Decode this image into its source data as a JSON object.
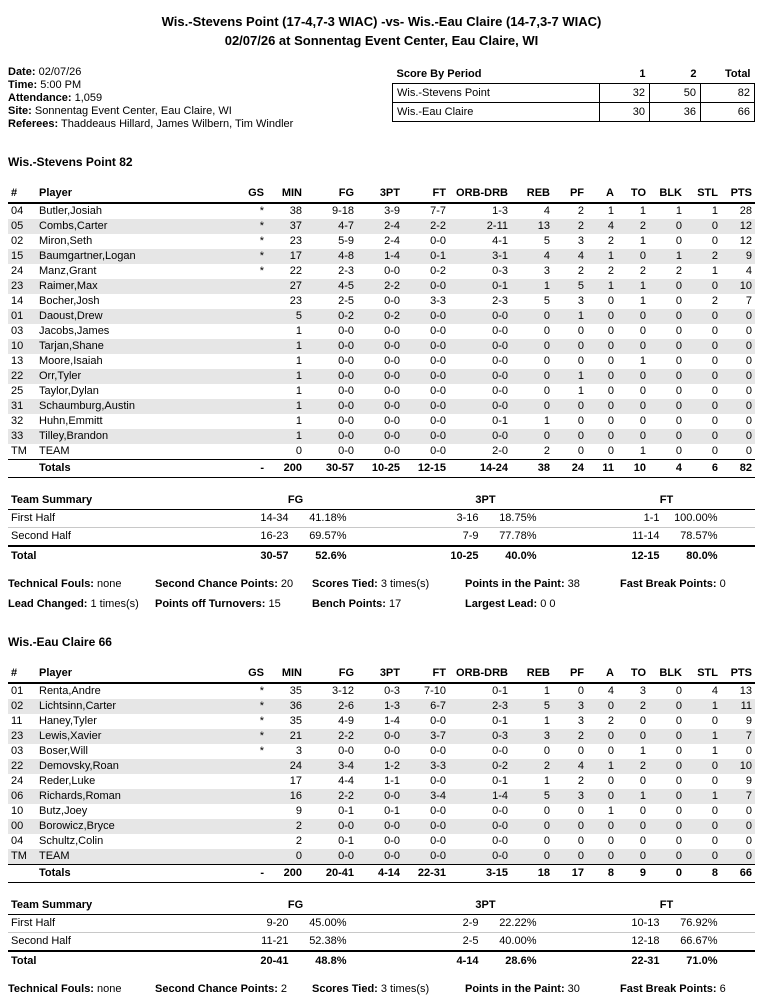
{
  "header": {
    "title": "Wis.-Stevens Point (17-4,7-3 WIAC) -vs- Wis.-Eau Claire (14-7,3-7 WIAC)",
    "subtitle": "02/07/26 at Sonnentag Event Center, Eau Claire, WI"
  },
  "game_info": {
    "date_label": "Date:",
    "date": "02/07/26",
    "time_label": "Time:",
    "time": "5:00 PM",
    "attendance_label": "Attendance:",
    "attendance": "1,059",
    "site_label": "Site:",
    "site": "Sonnentag Event Center, Eau Claire, WI",
    "referees_label": "Referees:",
    "referees": "Thaddeaus Hillard, James Wilbern, Tim Windler"
  },
  "score_by_period": {
    "header": [
      "Score By Period",
      "1",
      "2",
      "Total"
    ],
    "rows": [
      [
        "Wis.-Stevens Point",
        "32",
        "50",
        "82"
      ],
      [
        "Wis.-Eau Claire",
        "30",
        "36",
        "66"
      ]
    ]
  },
  "box_columns": [
    "#",
    "Player",
    "GS",
    "MIN",
    "FG",
    "3PT",
    "FT",
    "ORB-DRB",
    "REB",
    "PF",
    "A",
    "TO",
    "BLK",
    "STL",
    "PTS"
  ],
  "summary_columns": [
    "Team Summary",
    "FG",
    "3PT",
    "FT"
  ],
  "colors": {
    "row_shade": "#e6e6e6"
  },
  "teams": [
    {
      "heading": "Wis.-Stevens Point 82",
      "players": [
        [
          "04",
          "Butler,Josiah",
          "*",
          "38",
          "9-18",
          "3-9",
          "7-7",
          "1-3",
          "4",
          "2",
          "1",
          "1",
          "1",
          "1",
          "28"
        ],
        [
          "05",
          "Combs,Carter",
          "*",
          "37",
          "4-7",
          "2-4",
          "2-2",
          "2-11",
          "13",
          "2",
          "4",
          "2",
          "0",
          "0",
          "12"
        ],
        [
          "02",
          "Miron,Seth",
          "*",
          "23",
          "5-9",
          "2-4",
          "0-0",
          "4-1",
          "5",
          "3",
          "2",
          "1",
          "0",
          "0",
          "12"
        ],
        [
          "15",
          "Baumgartner,Logan",
          "*",
          "17",
          "4-8",
          "1-4",
          "0-1",
          "3-1",
          "4",
          "4",
          "1",
          "0",
          "1",
          "2",
          "9"
        ],
        [
          "24",
          "Manz,Grant",
          "*",
          "22",
          "2-3",
          "0-0",
          "0-2",
          "0-3",
          "3",
          "2",
          "2",
          "2",
          "2",
          "1",
          "4"
        ],
        [
          "23",
          "Raimer,Max",
          "",
          "27",
          "4-5",
          "2-2",
          "0-0",
          "0-1",
          "1",
          "5",
          "1",
          "1",
          "0",
          "0",
          "10"
        ],
        [
          "14",
          "Bocher,Josh",
          "",
          "23",
          "2-5",
          "0-0",
          "3-3",
          "2-3",
          "5",
          "3",
          "0",
          "1",
          "0",
          "2",
          "7"
        ],
        [
          "01",
          "Daoust,Drew",
          "",
          "5",
          "0-2",
          "0-2",
          "0-0",
          "0-0",
          "0",
          "1",
          "0",
          "0",
          "0",
          "0",
          "0"
        ],
        [
          "03",
          "Jacobs,James",
          "",
          "1",
          "0-0",
          "0-0",
          "0-0",
          "0-0",
          "0",
          "0",
          "0",
          "0",
          "0",
          "0",
          "0"
        ],
        [
          "10",
          "Tarjan,Shane",
          "",
          "1",
          "0-0",
          "0-0",
          "0-0",
          "0-0",
          "0",
          "0",
          "0",
          "0",
          "0",
          "0",
          "0"
        ],
        [
          "13",
          "Moore,Isaiah",
          "",
          "1",
          "0-0",
          "0-0",
          "0-0",
          "0-0",
          "0",
          "0",
          "0",
          "1",
          "0",
          "0",
          "0"
        ],
        [
          "22",
          "Orr,Tyler",
          "",
          "1",
          "0-0",
          "0-0",
          "0-0",
          "0-0",
          "0",
          "1",
          "0",
          "0",
          "0",
          "0",
          "0"
        ],
        [
          "25",
          "Taylor,Dylan",
          "",
          "1",
          "0-0",
          "0-0",
          "0-0",
          "0-0",
          "0",
          "1",
          "0",
          "0",
          "0",
          "0",
          "0"
        ],
        [
          "31",
          "Schaumburg,Austin",
          "",
          "1",
          "0-0",
          "0-0",
          "0-0",
          "0-0",
          "0",
          "0",
          "0",
          "0",
          "0",
          "0",
          "0"
        ],
        [
          "32",
          "Huhn,Emmitt",
          "",
          "1",
          "0-0",
          "0-0",
          "0-0",
          "0-1",
          "1",
          "0",
          "0",
          "0",
          "0",
          "0",
          "0"
        ],
        [
          "33",
          "Tilley,Brandon",
          "",
          "1",
          "0-0",
          "0-0",
          "0-0",
          "0-0",
          "0",
          "0",
          "0",
          "0",
          "0",
          "0",
          "0"
        ],
        [
          "TM",
          "TEAM",
          "",
          "0",
          "0-0",
          "0-0",
          "0-0",
          "2-0",
          "2",
          "0",
          "0",
          "1",
          "0",
          "0",
          "0"
        ]
      ],
      "totals": [
        "",
        "Totals",
        "-",
        "200",
        "30-57",
        "10-25",
        "12-15",
        "14-24",
        "38",
        "24",
        "11",
        "10",
        "4",
        "6",
        "82"
      ],
      "summary": {
        "rows": [
          [
            "First Half",
            [
              "14-34",
              "41.18%"
            ],
            [
              "3-16",
              "18.75%"
            ],
            [
              "1-1",
              "100.00%"
            ]
          ],
          [
            "Second Half",
            [
              "16-23",
              "69.57%"
            ],
            [
              "7-9",
              "77.78%"
            ],
            [
              "11-14",
              "78.57%"
            ]
          ]
        ],
        "total": [
          "Total",
          [
            "30-57",
            "52.6%"
          ],
          [
            "10-25",
            "40.0%"
          ],
          [
            "12-15",
            "80.0%"
          ]
        ]
      },
      "notes": [
        [
          [
            "Technical Fouls:",
            "none"
          ],
          [
            "Second Chance Points:",
            "20"
          ],
          [
            "Scores Tied:",
            "3 times(s)"
          ],
          [
            "Points in the Paint:",
            "38"
          ],
          [
            "Fast Break Points:",
            "0"
          ]
        ],
        [
          [
            "Lead Changed:",
            "1 times(s)"
          ],
          [
            "Points off Turnovers:",
            "15"
          ],
          [
            "Bench Points:",
            "17"
          ],
          [
            "Largest Lead:",
            "0 0"
          ]
        ]
      ]
    },
    {
      "heading": "Wis.-Eau Claire 66",
      "players": [
        [
          "01",
          "Renta,Andre",
          "*",
          "35",
          "3-12",
          "0-3",
          "7-10",
          "0-1",
          "1",
          "0",
          "4",
          "3",
          "0",
          "4",
          "13"
        ],
        [
          "02",
          "Lichtsinn,Carter",
          "*",
          "36",
          "2-6",
          "1-3",
          "6-7",
          "2-3",
          "5",
          "3",
          "0",
          "2",
          "0",
          "1",
          "11"
        ],
        [
          "11",
          "Haney,Tyler",
          "*",
          "35",
          "4-9",
          "1-4",
          "0-0",
          "0-1",
          "1",
          "3",
          "2",
          "0",
          "0",
          "0",
          "9"
        ],
        [
          "23",
          "Lewis,Xavier",
          "*",
          "21",
          "2-2",
          "0-0",
          "3-7",
          "0-3",
          "3",
          "2",
          "0",
          "0",
          "0",
          "1",
          "7"
        ],
        [
          "03",
          "Boser,Will",
          "*",
          "3",
          "0-0",
          "0-0",
          "0-0",
          "0-0",
          "0",
          "0",
          "0",
          "1",
          "0",
          "1",
          "0"
        ],
        [
          "22",
          "Demovsky,Roan",
          "",
          "24",
          "3-4",
          "1-2",
          "3-3",
          "0-2",
          "2",
          "4",
          "1",
          "2",
          "0",
          "0",
          "10"
        ],
        [
          "24",
          "Reder,Luke",
          "",
          "17",
          "4-4",
          "1-1",
          "0-0",
          "0-1",
          "1",
          "2",
          "0",
          "0",
          "0",
          "0",
          "9"
        ],
        [
          "06",
          "Richards,Roman",
          "",
          "16",
          "2-2",
          "0-0",
          "3-4",
          "1-4",
          "5",
          "3",
          "0",
          "1",
          "0",
          "1",
          "7"
        ],
        [
          "10",
          "Butz,Joey",
          "",
          "9",
          "0-1",
          "0-1",
          "0-0",
          "0-0",
          "0",
          "0",
          "1",
          "0",
          "0",
          "0",
          "0"
        ],
        [
          "00",
          "Borowicz,Bryce",
          "",
          "2",
          "0-0",
          "0-0",
          "0-0",
          "0-0",
          "0",
          "0",
          "0",
          "0",
          "0",
          "0",
          "0"
        ],
        [
          "04",
          "Schultz,Colin",
          "",
          "2",
          "0-1",
          "0-0",
          "0-0",
          "0-0",
          "0",
          "0",
          "0",
          "0",
          "0",
          "0",
          "0"
        ],
        [
          "TM",
          "TEAM",
          "",
          "0",
          "0-0",
          "0-0",
          "0-0",
          "0-0",
          "0",
          "0",
          "0",
          "0",
          "0",
          "0",
          "0"
        ]
      ],
      "totals": [
        "",
        "Totals",
        "-",
        "200",
        "20-41",
        "4-14",
        "22-31",
        "3-15",
        "18",
        "17",
        "8",
        "9",
        "0",
        "8",
        "66"
      ],
      "summary": {
        "rows": [
          [
            "First Half",
            [
              "9-20",
              "45.00%"
            ],
            [
              "2-9",
              "22.22%"
            ],
            [
              "10-13",
              "76.92%"
            ]
          ],
          [
            "Second Half",
            [
              "11-21",
              "52.38%"
            ],
            [
              "2-5",
              "40.00%"
            ],
            [
              "12-18",
              "66.67%"
            ]
          ]
        ],
        "total": [
          "Total",
          [
            "20-41",
            "48.8%"
          ],
          [
            "4-14",
            "28.6%"
          ],
          [
            "22-31",
            "71.0%"
          ]
        ]
      },
      "notes": [
        [
          [
            "Technical Fouls:",
            "none"
          ],
          [
            "Second Chance Points:",
            "2"
          ],
          [
            "Scores Tied:",
            "3 times(s)"
          ],
          [
            "Points in the Paint:",
            "30"
          ],
          [
            "Fast Break Points:",
            "6"
          ]
        ]
      ]
    }
  ]
}
